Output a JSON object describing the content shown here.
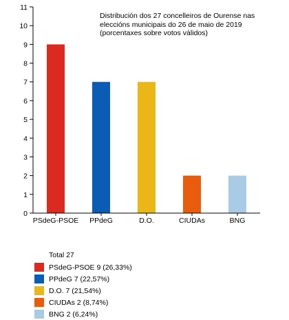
{
  "chart_data": {
    "type": "bar",
    "title": "Distribución dos 27 concelleiros de Ourense nas\neleccións municipais do 26 de maio de 2019\n(porcentaxes sobre votos válidos)",
    "categories": [
      "PSdeG-PSOE",
      "PPdeG",
      "D.O.",
      "CIUDAs",
      "BNG"
    ],
    "values": [
      9,
      7,
      7,
      2,
      2
    ],
    "colors": [
      "#dc2a21",
      "#0a5cb5",
      "#eab716",
      "#e95c0d",
      "#a9cbe6"
    ],
    "yticks": [
      0,
      1,
      2,
      3,
      4,
      5,
      6,
      7,
      8,
      9,
      10,
      11
    ],
    "ylim": [
      0,
      11
    ],
    "xlabel": "",
    "ylabel": "",
    "grid": false
  },
  "legend": {
    "total": "Total 27",
    "items": [
      {
        "label": "PSdeG-PSOE 9 (26,33%)",
        "color": "#dc2a21"
      },
      {
        "label": "PPdeG 7 (22,57%)",
        "color": "#0a5cb5"
      },
      {
        "label": "D.O. 7 (21,54%)",
        "color": "#eab716"
      },
      {
        "label": "CIUDAs 2 (8,74%)",
        "color": "#e95c0d"
      },
      {
        "label": "BNG 2 (6,24%)",
        "color": "#a9cbe6"
      }
    ]
  }
}
